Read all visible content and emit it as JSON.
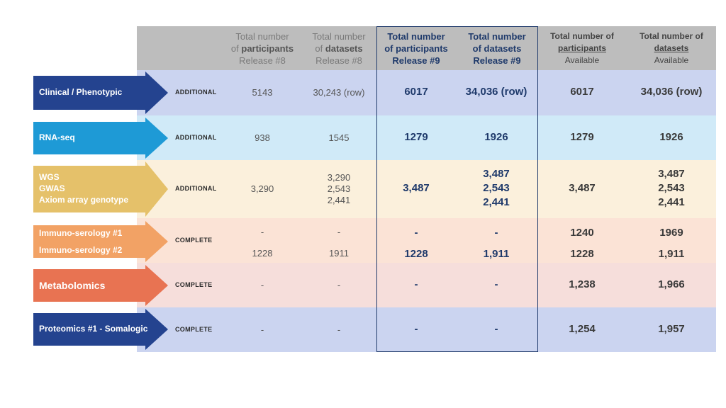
{
  "headers": {
    "r8_participants": [
      "Total number",
      "of ",
      "participants",
      "Release #8"
    ],
    "r8_datasets": [
      "Total number",
      "of ",
      "datasets",
      "Release #8"
    ],
    "r9_participants": [
      "Total number",
      "of participants",
      "Release #9"
    ],
    "r9_datasets": [
      "Total number",
      "of datasets",
      "Release #9"
    ],
    "av_participants": [
      "Total number of",
      "participants",
      "Available"
    ],
    "av_datasets": [
      "Total number of",
      "datasets",
      "Available"
    ]
  },
  "rows": [
    {
      "label_lines": [
        "Clinical / Phenotypic"
      ],
      "color": "#24438f",
      "bg": "#cbd4f0",
      "status": "ADDITIONAL",
      "r8_participants": [
        "5143"
      ],
      "r8_datasets": [
        "30,243 (row)"
      ],
      "r9_participants": [
        "6017"
      ],
      "r9_datasets": [
        "34,036 (row)"
      ],
      "av_participants": [
        "6017"
      ],
      "av_datasets": [
        "34,036 (row)"
      ]
    },
    {
      "label_lines": [
        "RNA-seq"
      ],
      "color": "#1e9ad6",
      "bg": "#d0eaf8",
      "status": "ADDITIONAL",
      "r8_participants": [
        "938"
      ],
      "r8_datasets": [
        "1545"
      ],
      "r9_participants": [
        "1279"
      ],
      "r9_datasets": [
        "1926"
      ],
      "av_participants": [
        "1279"
      ],
      "av_datasets": [
        "1926"
      ]
    },
    {
      "label_lines": [
        "WGS",
        "GWAS",
        "Axiom array genotype"
      ],
      "color": "#e5c16a",
      "bg": "#fbf0dc",
      "status": "ADDITIONAL",
      "r8_participants": [
        "3,290"
      ],
      "r8_datasets": [
        "3,290",
        "2,543",
        "2,441"
      ],
      "r9_participants": [
        "3,487"
      ],
      "r9_datasets": [
        "3,487",
        "2,543",
        "2,441"
      ],
      "av_participants": [
        "3,487"
      ],
      "av_datasets": [
        "3,487",
        "2,543",
        "2,441"
      ]
    },
    {
      "label_lines": [
        "Immuno-serology #1",
        "Immuno-serology #2"
      ],
      "color": "#f2a265",
      "bg": "#fbe3d6",
      "status": "COMPLETE",
      "r8_participants": [
        "-",
        "1228"
      ],
      "r8_datasets": [
        "-",
        "1911"
      ],
      "r9_participants": [
        "-",
        "1228"
      ],
      "r9_datasets": [
        "-",
        "1,911"
      ],
      "av_participants": [
        "1240",
        "1228"
      ],
      "av_datasets": [
        "1969",
        "1,911"
      ]
    },
    {
      "label_lines": [
        "Metabolomics"
      ],
      "color": "#e87352",
      "bg": "#f6dedb",
      "status": "COMPLETE",
      "r8_participants": [
        "-"
      ],
      "r8_datasets": [
        "-"
      ],
      "r9_participants": [
        "-"
      ],
      "r9_datasets": [
        "-"
      ],
      "av_participants": [
        "1,238"
      ],
      "av_datasets": [
        "1,966"
      ]
    },
    {
      "label_lines": [
        "Proteomics #1 - Somalogic"
      ],
      "color": "#24438f",
      "bg": "#cbd4f0",
      "status": "COMPLETE",
      "r8_participants": [
        "-"
      ],
      "r8_datasets": [
        "-"
      ],
      "r9_participants": [
        "-"
      ],
      "r9_datasets": [
        "-"
      ],
      "av_participants": [
        "1,254"
      ],
      "av_datasets": [
        "1,957"
      ]
    }
  ]
}
